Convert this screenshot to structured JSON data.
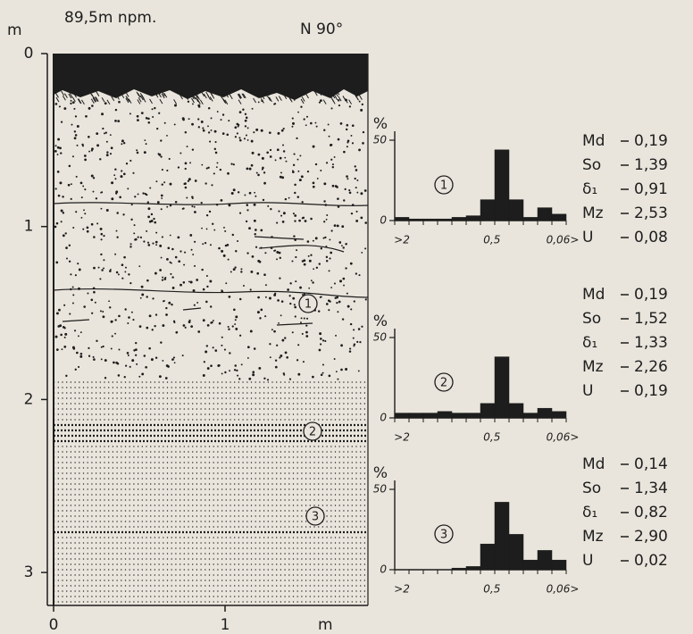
{
  "profile": {
    "elevation": "89,5m npm.",
    "orientation": "N 90°",
    "y_unit": "m",
    "x_unit": "m",
    "yticks": [
      0,
      1,
      2,
      3
    ],
    "xticks": [
      0,
      1
    ]
  },
  "histograms": [
    {
      "label": "1",
      "y_unit": "%",
      "yticks": [
        0,
        50
      ],
      "x_labels": [
        ">2",
        "0,5",
        "0,06>"
      ],
      "values": [
        2,
        1,
        1,
        1,
        2,
        3,
        13,
        44,
        13,
        2,
        8,
        4
      ],
      "stats": [
        {
          "name": "Md",
          "value": "0,19"
        },
        {
          "name": "So",
          "value": "1,39"
        },
        {
          "name": "δ₁",
          "value": "0,91"
        },
        {
          "name": "Mz",
          "value": "2,53"
        },
        {
          "name": "U",
          "value": "0,08"
        }
      ]
    },
    {
      "label": "2",
      "y_unit": "%",
      "yticks": [
        0,
        50
      ],
      "x_labels": [
        ">2",
        "0,5",
        "0,06>"
      ],
      "values": [
        3,
        3,
        3,
        4,
        3,
        3,
        9,
        38,
        9,
        3,
        6,
        4
      ],
      "stats": [
        {
          "name": "Md",
          "value": "0,19"
        },
        {
          "name": "So",
          "value": "1,52"
        },
        {
          "name": "δ₁",
          "value": "1,33"
        },
        {
          "name": "Mz",
          "value": "2,26"
        },
        {
          "name": "U",
          "value": "0,19"
        }
      ]
    },
    {
      "label": "3",
      "y_unit": "%",
      "yticks": [
        0,
        50
      ],
      "x_labels": [
        ">2",
        "0,5",
        "0,06>"
      ],
      "values": [
        0,
        0,
        0,
        0,
        1,
        2,
        16,
        42,
        22,
        6,
        12,
        6
      ],
      "stats": [
        {
          "name": "Md",
          "value": "0,14"
        },
        {
          "name": "So",
          "value": "1,34"
        },
        {
          "name": "δ₁",
          "value": "0,82"
        },
        {
          "name": "Mz",
          "value": "2,90"
        },
        {
          "name": "U",
          "value": "0,02"
        }
      ]
    }
  ]
}
